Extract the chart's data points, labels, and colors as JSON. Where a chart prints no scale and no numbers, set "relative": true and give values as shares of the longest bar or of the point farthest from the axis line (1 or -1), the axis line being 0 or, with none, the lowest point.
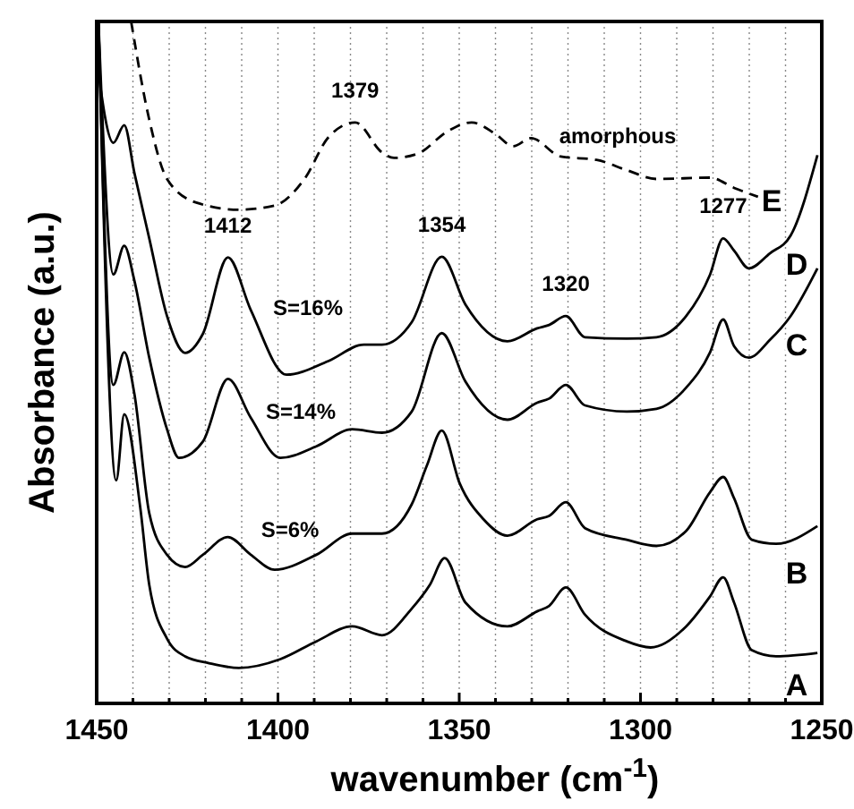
{
  "chart_data": {
    "type": "line",
    "relative": true,
    "xlabel": "wavenumber (cm$^{-1}$)",
    "ylabel": "Absorbance (a.u.)",
    "xlim": [
      1450,
      1250
    ],
    "xticks": [
      1450,
      {
        "value": 1440,
        "label": null
      },
      {
        "value": 1430,
        "label": null
      },
      {
        "value": 1420,
        "label": null
      },
      {
        "value": 1410,
        "label": null
      },
      1400,
      {
        "value": 1390,
        "label": null
      },
      {
        "value": 1380,
        "label": null
      },
      {
        "value": 1370,
        "label": null
      },
      {
        "value": 1360,
        "label": null
      },
      1350,
      {
        "value": 1340,
        "label": null
      },
      {
        "value": 1330,
        "label": null
      },
      {
        "value": 1320,
        "label": null
      },
      {
        "value": 1310,
        "label": null
      },
      1300,
      {
        "value": 1290,
        "label": null
      },
      {
        "value": 1280,
        "label": null
      },
      {
        "value": 1270,
        "label": null
      },
      {
        "value": 1260,
        "label": null
      },
      1250
    ],
    "grid": "x",
    "marker": "none",
    "series": [
      {
        "name": "A",
        "color": "#000000",
        "line_style": "solid",
        "x": [
          1449.5,
          1444.6,
          1442.4,
          1438.0,
          1435.5,
          1430.6,
          1425.6,
          1419.0,
          1410.8,
          1399.3,
          1389.4,
          1379.5,
          1371.3,
          1363.1,
          1358.1,
          1354.0,
          1348.3,
          1336.7,
          1328.5,
          1325.2,
          1320.6,
          1315.3,
          1303.8,
          1297.2,
          1287.4,
          1280.8,
          1277.2,
          1274.2,
          1269.3,
          1262.6,
          1251.2
        ],
        "values": [
          1.0,
          0.327,
          0.424,
          0.288,
          0.174,
          0.095,
          0.069,
          0.059,
          0.052,
          0.065,
          0.091,
          0.113,
          0.1,
          0.139,
          0.174,
          0.213,
          0.148,
          0.113,
          0.135,
          0.143,
          0.17,
          0.13,
          0.091,
          0.082,
          0.113,
          0.157,
          0.185,
          0.148,
          0.078,
          0.069,
          0.074
        ]
      },
      {
        "name": "B",
        "color": "#000000",
        "line_style": "solid",
        "x": [
          1449.5,
          1445.4,
          1442.4,
          1439.6,
          1435.5,
          1430.6,
          1425.6,
          1420.7,
          1413.8,
          1407.5,
          1400.9,
          1389.4,
          1379.5,
          1371.3,
          1363.1,
          1358.9,
          1354.8,
          1349.9,
          1343.3,
          1336.7,
          1328.5,
          1325.2,
          1320.6,
          1315.3,
          1303.8,
          1295.6,
          1287.4,
          1280.8,
          1277.2,
          1274.2,
          1269.3,
          1262.6,
          1251.2
        ],
        "values": [
          1.0,
          0.467,
          0.515,
          0.454,
          0.279,
          0.218,
          0.2,
          0.218,
          0.244,
          0.218,
          0.196,
          0.218,
          0.249,
          0.249,
          0.292,
          0.349,
          0.4,
          0.323,
          0.27,
          0.246,
          0.27,
          0.275,
          0.295,
          0.257,
          0.24,
          0.231,
          0.253,
          0.31,
          0.332,
          0.301,
          0.24,
          0.234,
          0.26
        ]
      },
      {
        "name": "C",
        "color": "#000000",
        "line_style": "solid",
        "x": [
          1449.5,
          1445.4,
          1442.4,
          1439.6,
          1435.5,
          1430.6,
          1427.3,
          1420.7,
          1413.8,
          1407.5,
          1399.3,
          1389.4,
          1379.5,
          1371.3,
          1363.1,
          1354.8,
          1348.3,
          1336.7,
          1328.5,
          1325.2,
          1320.6,
          1315.3,
          1303.8,
          1295.6,
          1287.4,
          1280.8,
          1277.2,
          1274.2,
          1270.1,
          1264.3,
          1258.6,
          1251.2
        ],
        "values": [
          1.0,
          0.629,
          0.671,
          0.62,
          0.507,
          0.402,
          0.36,
          0.384,
          0.476,
          0.419,
          0.36,
          0.377,
          0.402,
          0.397,
          0.428,
          0.543,
          0.472,
          0.416,
          0.441,
          0.447,
          0.467,
          0.437,
          0.428,
          0.432,
          0.463,
          0.515,
          0.563,
          0.524,
          0.507,
          0.533,
          0.568,
          0.638
        ]
      },
      {
        "name": "D",
        "color": "#000000",
        "line_style": "solid",
        "x": [
          1450.0,
          1445.4,
          1442.4,
          1439.6,
          1435.5,
          1430.6,
          1425.6,
          1420.7,
          1413.8,
          1407.5,
          1397.6,
          1386.1,
          1376.3,
          1371.3,
          1363.1,
          1354.8,
          1348.3,
          1336.7,
          1328.5,
          1325.2,
          1320.6,
          1315.3,
          1303.8,
          1295.6,
          1287.4,
          1280.8,
          1277.2,
          1274.2,
          1270.1,
          1264.3,
          1258.6,
          1251.2
        ],
        "values": [
          0.944,
          0.822,
          0.848,
          0.778,
          0.682,
          0.568,
          0.514,
          0.542,
          0.654,
          0.577,
          0.482,
          0.502,
          0.526,
          0.526,
          0.559,
          0.655,
          0.585,
          0.531,
          0.55,
          0.555,
          0.568,
          0.537,
          0.535,
          0.537,
          0.568,
          0.629,
          0.682,
          0.664,
          0.638,
          0.66,
          0.686,
          0.804
        ]
      },
      {
        "name": "E",
        "color": "#000000",
        "line_style": "dashed",
        "x": [
          1440.5,
          1435.5,
          1430.6,
          1422.3,
          1410.8,
          1401.0,
          1392.7,
          1386.1,
          1378.7,
          1371.3,
          1368.0,
          1361.5,
          1353.2,
          1346.6,
          1340.0,
          1335.1,
          1330.2,
          1322.0,
          1312.1,
          1303.8,
          1295.6,
          1280.8,
          1274.2,
          1267.6
        ],
        "values": [
          1.0,
          0.856,
          0.769,
          0.734,
          0.724,
          0.73,
          0.769,
          0.83,
          0.852,
          0.808,
          0.8,
          0.806,
          0.839,
          0.852,
          0.835,
          0.817,
          0.829,
          0.802,
          0.797,
          0.782,
          0.769,
          0.771,
          0.756,
          0.743
        ]
      }
    ],
    "annotations": [
      {
        "text": "1379",
        "x": 1378.7,
        "y": 0.852
      },
      {
        "text": "1412",
        "x": 1413.8,
        "y": 0.654
      },
      {
        "text": "1354",
        "x": 1354.8,
        "y": 0.655
      },
      {
        "text": "1277",
        "x": 1277.2,
        "y": 0.682
      },
      {
        "text": "1320",
        "x": 1320.6,
        "y": 0.568
      },
      "amorphous",
      "S=16%",
      "S=14%",
      "S=6%"
    ]
  }
}
